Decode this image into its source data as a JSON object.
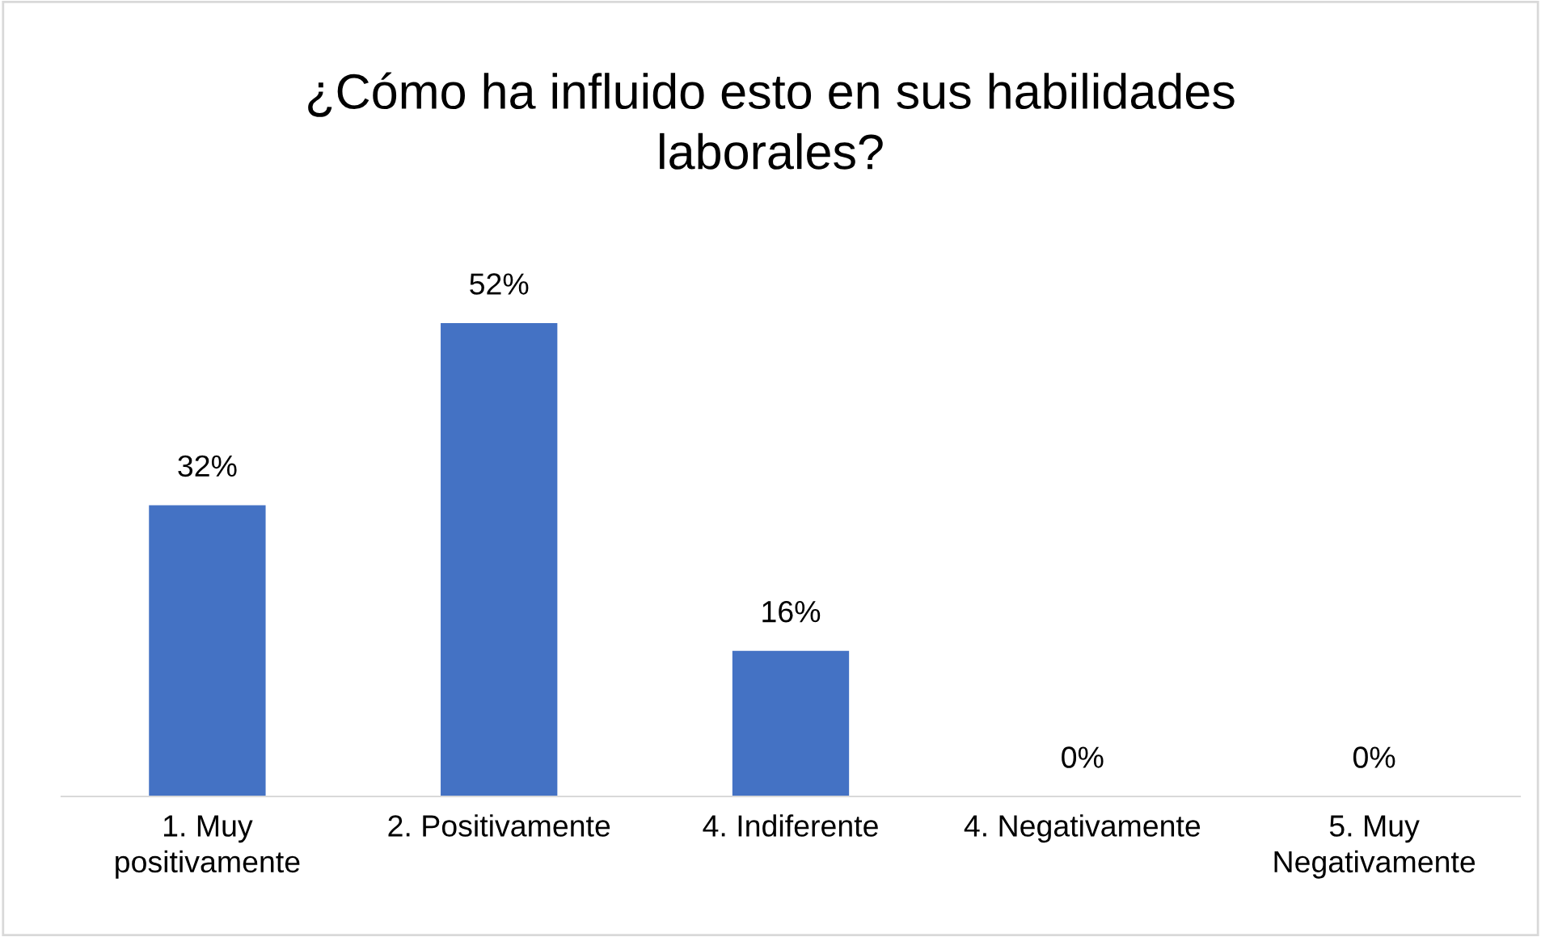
{
  "chart_data": {
    "type": "bar",
    "title": "¿Cómo ha influido esto en sus habilidades\nlaborales?",
    "categories": [
      "1. Muy\npositivamente",
      "2. Positivamente",
      "4. Indiferente",
      "4. Negativamente",
      "5. Muy\nNegativamente"
    ],
    "values": [
      32,
      52,
      16,
      0,
      0
    ],
    "value_labels": [
      "32%",
      "52%",
      "16%",
      "0%",
      "0%"
    ],
    "color": "#4472c4",
    "grid": false,
    "legend": false
  }
}
